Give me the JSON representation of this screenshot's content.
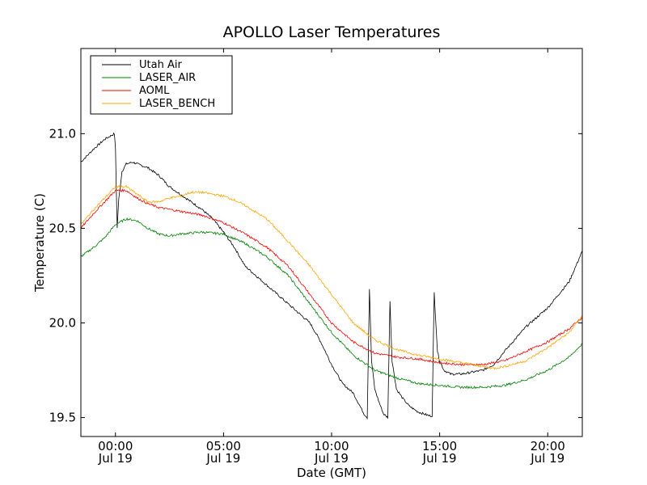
{
  "chart_data": {
    "type": "line",
    "title": "APOLLO Laser Temperatures",
    "xlabel": "Date (GMT)",
    "ylabel": "Temperature (C)",
    "x_unit": "hours since Jul 19 00:00 GMT",
    "xlim": [
      -1.6,
      21.6
    ],
    "ylim": [
      19.4,
      21.45
    ],
    "grid": false,
    "legend_position": "top-left",
    "y_ticks": [
      {
        "value": 19.5,
        "label": "19.5"
      },
      {
        "value": 20.0,
        "label": "20.0"
      },
      {
        "value": 20.5,
        "label": "20.5"
      },
      {
        "value": 21.0,
        "label": "21.0"
      }
    ],
    "x_ticks": [
      {
        "value": 0,
        "label": "00:00",
        "sublabel": "Jul 19"
      },
      {
        "value": 5,
        "label": "05:00",
        "sublabel": "Jul 19"
      },
      {
        "value": 10,
        "label": "10:00",
        "sublabel": "Jul 19"
      },
      {
        "value": 15,
        "label": "15:00",
        "sublabel": "Jul 19"
      },
      {
        "value": 20,
        "label": "20:00",
        "sublabel": "Jul 19"
      }
    ],
    "series": [
      {
        "name": "Utah Air",
        "color": "#000000",
        "x": [
          -1.6,
          -1.0,
          -0.5,
          -0.05,
          0.0,
          0.08,
          0.15,
          0.3,
          0.5,
          0.8,
          1.0,
          1.5,
          2.0,
          2.5,
          3.0,
          3.5,
          4.0,
          4.5,
          5.0,
          5.5,
          6.0,
          7.0,
          8.0,
          9.0,
          9.5,
          10.0,
          10.5,
          11.0,
          11.5,
          11.65,
          11.75,
          11.85,
          12.0,
          12.2,
          12.4,
          12.6,
          12.7,
          12.8,
          13.0,
          13.3,
          13.6,
          14.0,
          14.5,
          14.65,
          14.75,
          14.9,
          15.0,
          15.2,
          15.5,
          16.0,
          16.5,
          17.0,
          17.5,
          18.0,
          19.0,
          20.0,
          21.0,
          21.6
        ],
        "y": [
          20.85,
          20.92,
          20.97,
          21.0,
          20.92,
          20.5,
          20.65,
          20.8,
          20.84,
          20.85,
          20.84,
          20.82,
          20.78,
          20.72,
          20.68,
          20.64,
          20.6,
          20.55,
          20.48,
          20.4,
          20.3,
          20.2,
          20.1,
          20.0,
          19.9,
          19.78,
          19.68,
          19.63,
          19.52,
          19.5,
          20.18,
          19.8,
          19.65,
          19.58,
          19.52,
          19.5,
          20.12,
          19.8,
          19.65,
          19.6,
          19.56,
          19.53,
          19.51,
          19.51,
          20.16,
          19.85,
          19.8,
          19.75,
          19.73,
          19.73,
          19.74,
          19.75,
          19.78,
          19.85,
          19.98,
          20.08,
          20.22,
          20.38
        ]
      },
      {
        "name": "LASER_AIR",
        "color": "#008000",
        "x": [
          -1.6,
          -1.0,
          -0.5,
          0.0,
          0.5,
          1.0,
          1.5,
          2.0,
          2.5,
          3.0,
          4.0,
          5.0,
          6.0,
          7.0,
          8.0,
          9.0,
          10.0,
          11.0,
          12.0,
          12.5,
          13.0,
          14.0,
          15.0,
          16.0,
          17.0,
          18.0,
          19.0,
          20.0,
          21.0,
          21.6
        ],
        "y": [
          20.35,
          20.4,
          20.45,
          20.52,
          20.55,
          20.54,
          20.5,
          20.47,
          20.46,
          20.47,
          20.48,
          20.47,
          20.42,
          20.35,
          20.25,
          20.1,
          19.95,
          19.83,
          19.75,
          19.73,
          19.71,
          19.68,
          19.67,
          19.66,
          19.66,
          19.67,
          19.7,
          19.75,
          19.82,
          19.89
        ]
      },
      {
        "name": "AOML",
        "color": "#ff0000",
        "x": [
          -1.6,
          -1.0,
          -0.5,
          0.0,
          0.5,
          1.0,
          1.5,
          2.0,
          2.5,
          3.0,
          4.0,
          5.0,
          6.0,
          7.0,
          8.0,
          9.0,
          10.0,
          11.0,
          12.0,
          13.0,
          14.0,
          15.0,
          16.0,
          17.0,
          18.0,
          19.0,
          20.0,
          21.0,
          21.6
        ],
        "y": [
          20.5,
          20.58,
          20.64,
          20.7,
          20.7,
          20.66,
          20.63,
          20.61,
          20.6,
          20.59,
          20.57,
          20.53,
          20.47,
          20.4,
          20.3,
          20.15,
          20.0,
          19.9,
          19.84,
          19.82,
          19.81,
          19.79,
          19.78,
          19.78,
          19.8,
          19.85,
          19.9,
          19.97,
          20.03
        ]
      },
      {
        "name": "LASER_BENCH",
        "color": "#ffa500",
        "x": [
          -1.6,
          -1.0,
          -0.5,
          0.0,
          0.5,
          1.0,
          1.5,
          2.0,
          2.5,
          3.0,
          3.5,
          4.0,
          4.5,
          5.0,
          5.5,
          6.0,
          7.0,
          8.0,
          9.0,
          10.0,
          11.0,
          12.0,
          13.0,
          14.0,
          15.0,
          16.0,
          17.0,
          17.5,
          18.0,
          19.0,
          20.0,
          21.0,
          21.6
        ],
        "y": [
          20.52,
          20.6,
          20.66,
          20.72,
          20.72,
          20.68,
          20.64,
          20.64,
          20.66,
          20.67,
          20.69,
          20.69,
          20.68,
          20.67,
          20.65,
          20.62,
          20.55,
          20.43,
          20.3,
          20.15,
          20.0,
          19.91,
          19.86,
          19.83,
          19.81,
          19.79,
          19.77,
          19.76,
          19.77,
          19.8,
          19.87,
          19.95,
          20.04
        ]
      }
    ]
  }
}
